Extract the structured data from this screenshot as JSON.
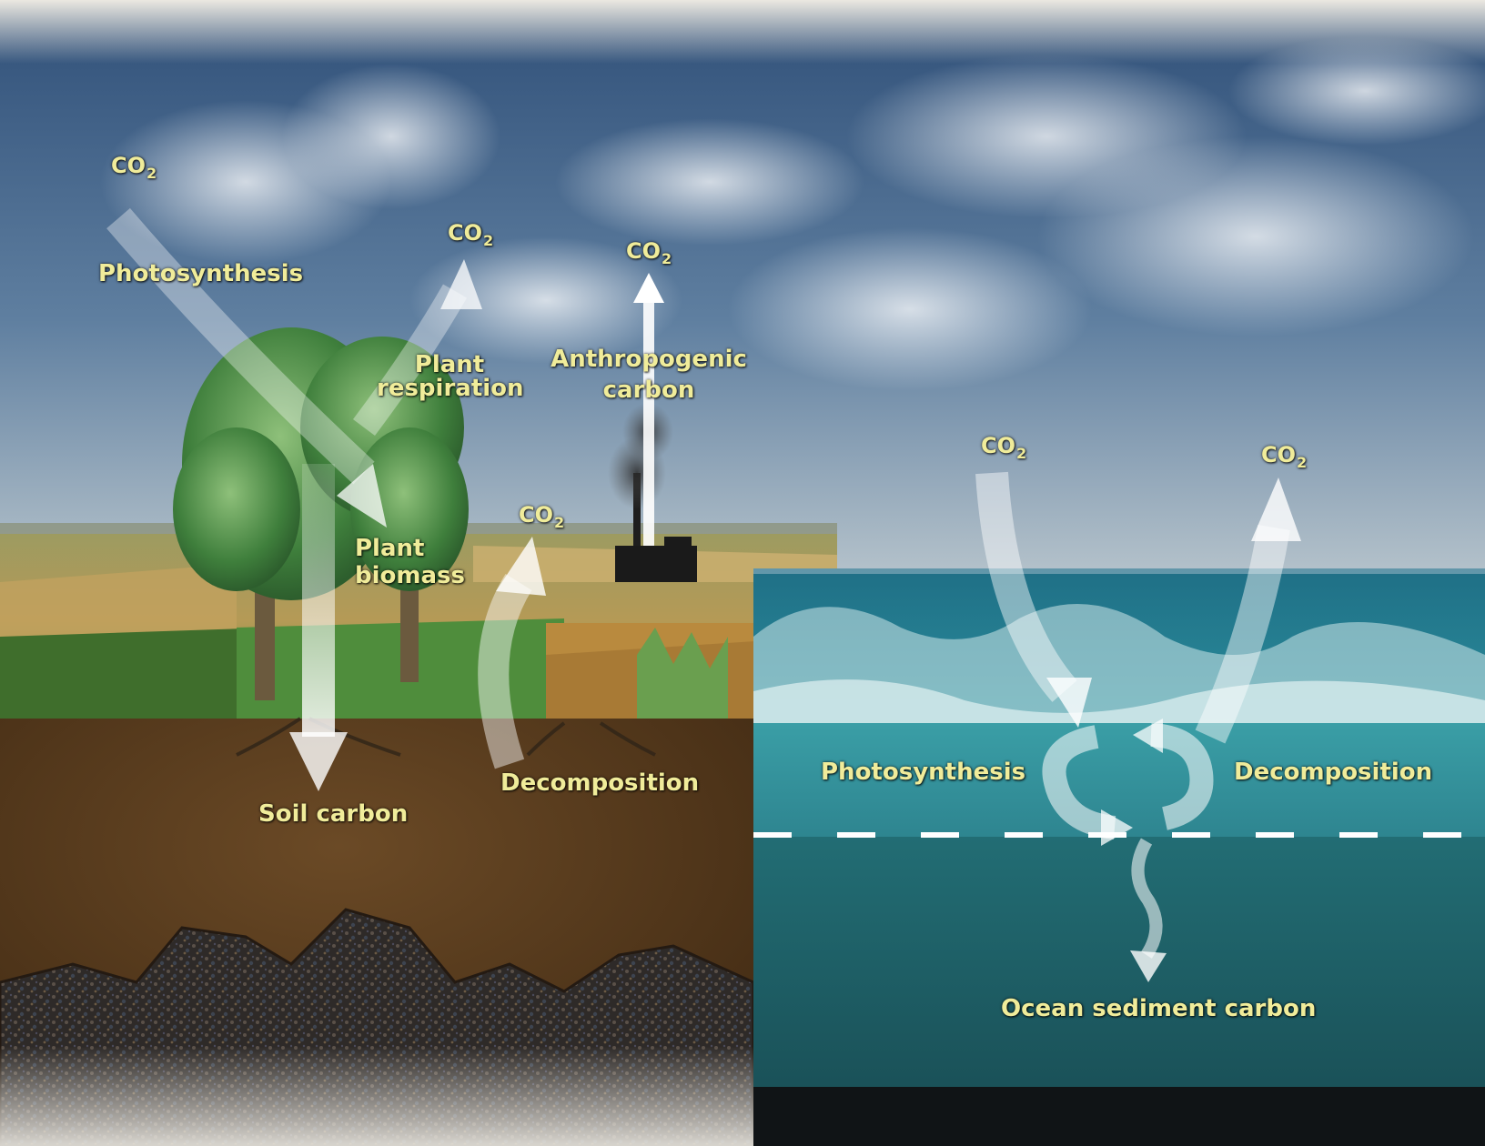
{
  "labels": {
    "co2_text": "CO",
    "co2_subscript": "2",
    "land_photosynthesis": "Photosynthesis",
    "plant_respiration_line1": "Plant",
    "plant_respiration_line2": "respiration",
    "anthropogenic_line1": "Anthropogenic",
    "anthropogenic_line2": "carbon",
    "plant_biomass_line1": "Plant",
    "plant_biomass_line2": "biomass",
    "soil_carbon": "Soil carbon",
    "land_decomposition": "Decomposition",
    "ocean_photosynthesis": "Photosynthesis",
    "ocean_decomposition": "Decomposition",
    "ocean_sediment_carbon": "Ocean sediment carbon"
  },
  "colors": {
    "label_text": "#f0ec9a",
    "sky_top": "#3f5f86",
    "sky_bottom": "#9fb3c4",
    "soil": "#5a3d1e",
    "ocean_surface": "#2f8d96",
    "ocean_deep": "#1f5f66",
    "arrow": "#ffffff"
  }
}
